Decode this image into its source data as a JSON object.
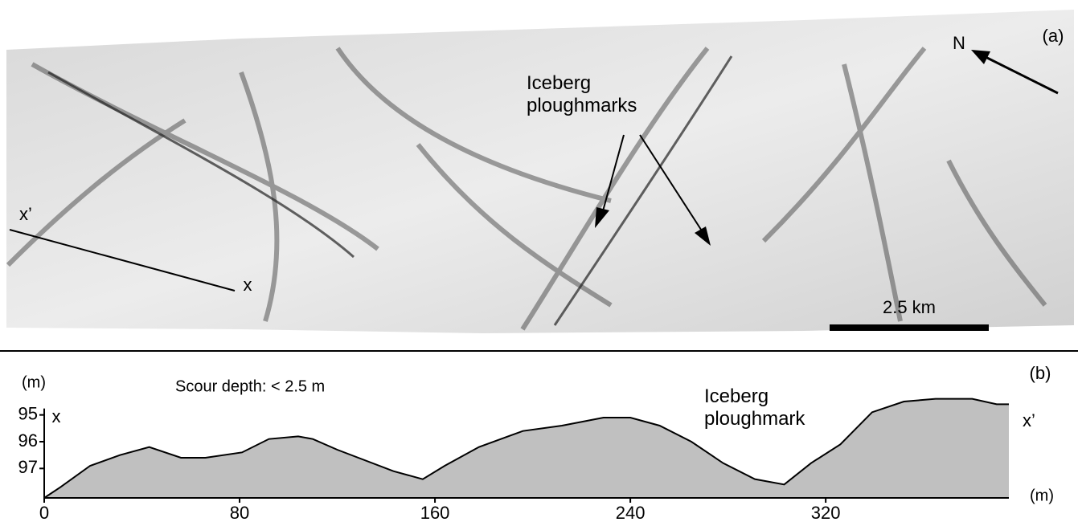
{
  "panel_a": {
    "label": "(a)",
    "north": "N",
    "annotation": "Iceberg ploughmarks",
    "profile_start": "x’",
    "profile_end": "x",
    "scale_bar": "2.5 km"
  },
  "chart_data": {
    "type": "area",
    "panel_label": "(b)",
    "y_label": "(m)",
    "x_label": "(m)",
    "annotations": [
      "Scour depth: < 2.5 m",
      "Iceberg ploughmark",
      "x",
      "x’"
    ],
    "x": [
      0,
      6.6,
      18.8,
      31,
      43,
      56,
      66,
      81,
      92,
      104,
      110,
      120,
      143,
      155,
      164,
      178,
      196,
      212,
      229,
      240,
      252,
      265,
      278,
      291,
      303,
      314,
      326,
      339,
      352,
      365,
      380,
      390,
      395
    ],
    "values": [
      98.1,
      97.7,
      96.9,
      96.5,
      96.2,
      96.6,
      96.6,
      96.4,
      95.9,
      95.8,
      95.9,
      96.3,
      97.1,
      97.4,
      96.9,
      96.2,
      95.6,
      95.4,
      95.1,
      95.1,
      95.4,
      96.0,
      96.8,
      97.4,
      97.6,
      96.8,
      96.1,
      94.9,
      94.5,
      94.4,
      94.4,
      94.6,
      94.6
    ],
    "color": "#c0c0c0",
    "xlim": [
      0,
      395
    ],
    "ylim": [
      98.1,
      94.35
    ],
    "xticks": [
      0,
      80,
      160,
      240,
      320
    ],
    "yticks": [
      95,
      96,
      97
    ]
  }
}
